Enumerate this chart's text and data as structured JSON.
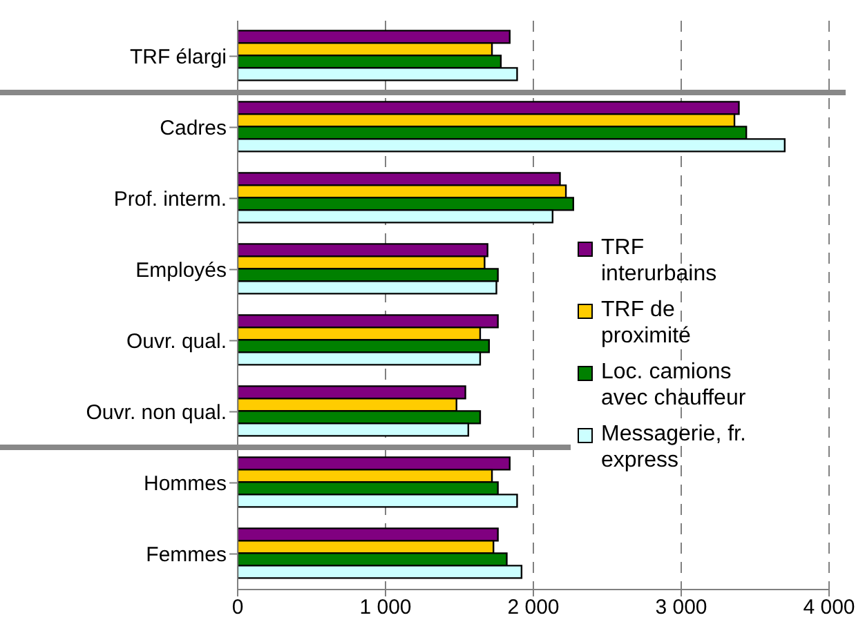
{
  "chart_data": {
    "type": "bar",
    "orientation": "horizontal",
    "categories": [
      "TRF élargi",
      "Cadres",
      "Prof. interm.",
      "Employés",
      "Ouvr. qual.",
      "Ouvr. non qual.",
      "Hommes",
      "Femmes"
    ],
    "series": [
      {
        "name": "TRF interurbains",
        "color": "#800080",
        "values": [
          1840,
          3390,
          2180,
          1690,
          1760,
          1540,
          1840,
          1760
        ]
      },
      {
        "name": "TRF de proximité",
        "color": "#ffcc00",
        "values": [
          1720,
          3360,
          2220,
          1670,
          1640,
          1480,
          1720,
          1730
        ]
      },
      {
        "name": "Loc. camions avec chauffeur",
        "color": "#008000",
        "values": [
          1780,
          3440,
          2270,
          1760,
          1700,
          1640,
          1760,
          1820
        ]
      },
      {
        "name": "Messagerie, fr. express",
        "color": "#ccffff",
        "values": [
          1890,
          3700,
          2130,
          1750,
          1640,
          1560,
          1890,
          1920
        ]
      }
    ],
    "xlim": [
      0,
      4000
    ],
    "xticks": [
      0,
      {
        "value": 1000,
        "label": "1 000"
      },
      {
        "value": 2000,
        "label": "2 000"
      },
      {
        "value": 3000,
        "label": "3 000"
      },
      {
        "value": 4000,
        "label": "4 000"
      }
    ],
    "grid": "x",
    "legend": "right"
  }
}
